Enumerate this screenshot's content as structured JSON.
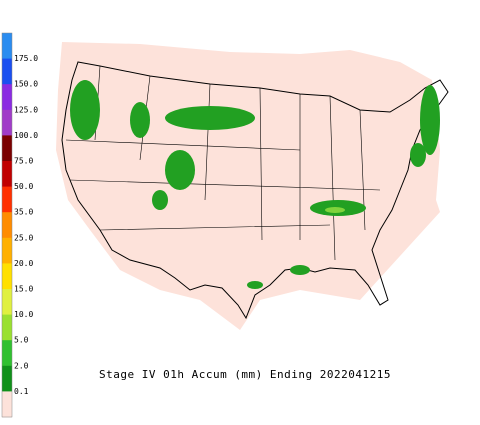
{
  "title": "Stage IV 01h Accum (mm) Ending 2022041215",
  "legend": {
    "labels": [
      "175.0",
      "150.0",
      "125.0",
      "100.0",
      "75.0",
      "50.0",
      "35.0",
      "25.0",
      "20.0",
      "15.0",
      "10.0",
      "5.0",
      "2.0",
      "0.1"
    ]
  }
}
